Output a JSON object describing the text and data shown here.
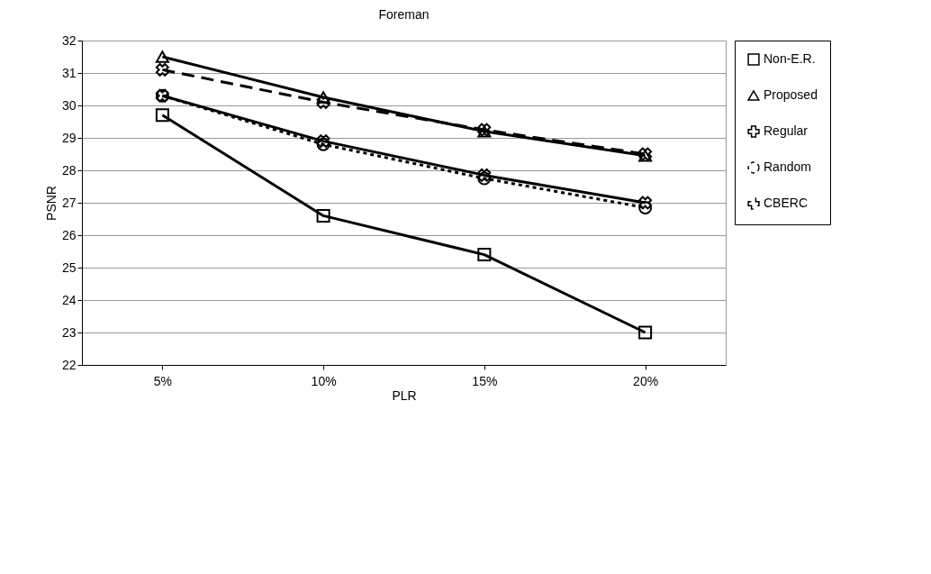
{
  "chart_data": {
    "type": "line",
    "title": "Foreman",
    "xlabel": "PLR",
    "ylabel": "PSNR",
    "categories": [
      "5%",
      "10%",
      "15%",
      "20%"
    ],
    "series": [
      {
        "name": "Non-E.R.",
        "color": "#000000",
        "marker": "square",
        "line_style": "solid",
        "values": [
          29.7,
          26.6,
          25.4,
          23.0
        ]
      },
      {
        "name": "Proposed",
        "color": "#000000",
        "marker": "triangle",
        "line_style": "solid",
        "values": [
          31.5,
          30.25,
          29.2,
          28.45
        ]
      },
      {
        "name": "Regular",
        "color": "#000000",
        "marker": "cross",
        "line_style": "solid",
        "values": [
          30.3,
          28.9,
          27.85,
          27.0
        ]
      },
      {
        "name": "Random",
        "color": "#000000",
        "marker": "circle",
        "line_style": "dotted",
        "values": [
          30.3,
          28.8,
          27.75,
          26.85
        ]
      },
      {
        "name": "CBERC",
        "color": "#000000",
        "marker": "cross",
        "line_style": "dashed",
        "values": [
          31.1,
          30.1,
          29.25,
          28.5
        ]
      }
    ],
    "ylim": [
      22,
      32
    ],
    "yticks": [
      22,
      23,
      24,
      25,
      26,
      27,
      28,
      29,
      30,
      31,
      32
    ],
    "grid": "y",
    "legend": "right"
  }
}
